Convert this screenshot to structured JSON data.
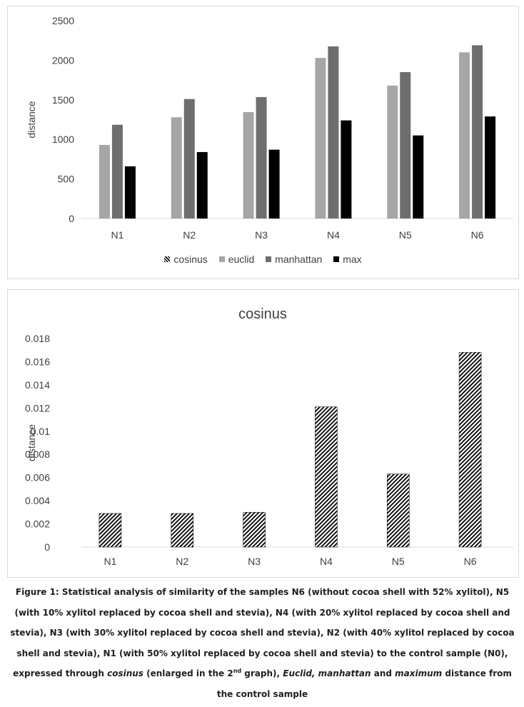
{
  "chart_data": [
    {
      "type": "bar",
      "title": "",
      "xlabel": "",
      "ylabel": "distance",
      "categories": [
        "N1",
        "N2",
        "N3",
        "N4",
        "N5",
        "N6"
      ],
      "ylim": [
        0,
        2500
      ],
      "yticks": [
        "0",
        "500",
        "1000",
        "1500",
        "2000",
        "2500"
      ],
      "grid": false,
      "legend_placement": "bottom",
      "series": [
        {
          "name": "cosinus",
          "values": [
            0.0029,
            0.0029,
            0.003,
            0.0121,
            0.0063,
            0.0168
          ],
          "color": "#000000",
          "pattern": "hatched"
        },
        {
          "name": "euclid",
          "values": [
            930,
            1280,
            1345,
            2030,
            1680,
            2100
          ],
          "color": "#a6a6a6",
          "pattern": "solid"
        },
        {
          "name": "manhattan",
          "values": [
            1185,
            1510,
            1535,
            2175,
            1850,
            2190
          ],
          "color": "#6e6e6e",
          "pattern": "solid"
        },
        {
          "name": "max",
          "values": [
            660,
            840,
            870,
            1240,
            1050,
            1290
          ],
          "color": "#000000",
          "pattern": "solid"
        }
      ]
    },
    {
      "type": "bar",
      "title": "cosinus",
      "xlabel": "",
      "ylabel": "distance",
      "categories": [
        "N1",
        "N2",
        "N3",
        "N4",
        "N5",
        "N6"
      ],
      "ylim": [
        0,
        0.018
      ],
      "yticks": [
        "0",
        "0.002",
        "0.004",
        "0.006",
        "0.008",
        "0.01",
        "0.012",
        "0.014",
        "0.016",
        "0.018"
      ],
      "grid": false,
      "series": [
        {
          "name": "cosinus",
          "values": [
            0.0029,
            0.0029,
            0.003,
            0.0121,
            0.0063,
            0.0168
          ],
          "color": "#000000",
          "pattern": "hatched"
        }
      ]
    }
  ],
  "caption": {
    "prefix": "Figure 1: Statistical analysis of similarity of the samples N6 (without cocoa shell with 52% xylitol), N5 (with 10% xylitol replaced by cocoa shell and stevia), N4 (with 20% xylitol replaced by cocoa shell and stevia), N3 (with 30% xylitol replaced by cocoa shell and stevia), N2 (with 40% xylitol replaced by cocoa shell and stevia), N1 (with 50% xylitol replaced by cocoa shell and stevia) to the control sample (N0), expressed through ",
    "cosinus": "cosinus",
    "mid1": " (enlarged in the 2",
    "sup": "nd",
    "mid2": " graph), ",
    "euclid": "Euclid, manhattan",
    "and": " and ",
    "maximum": "maximum",
    "suffix": " distance from the control sample"
  }
}
